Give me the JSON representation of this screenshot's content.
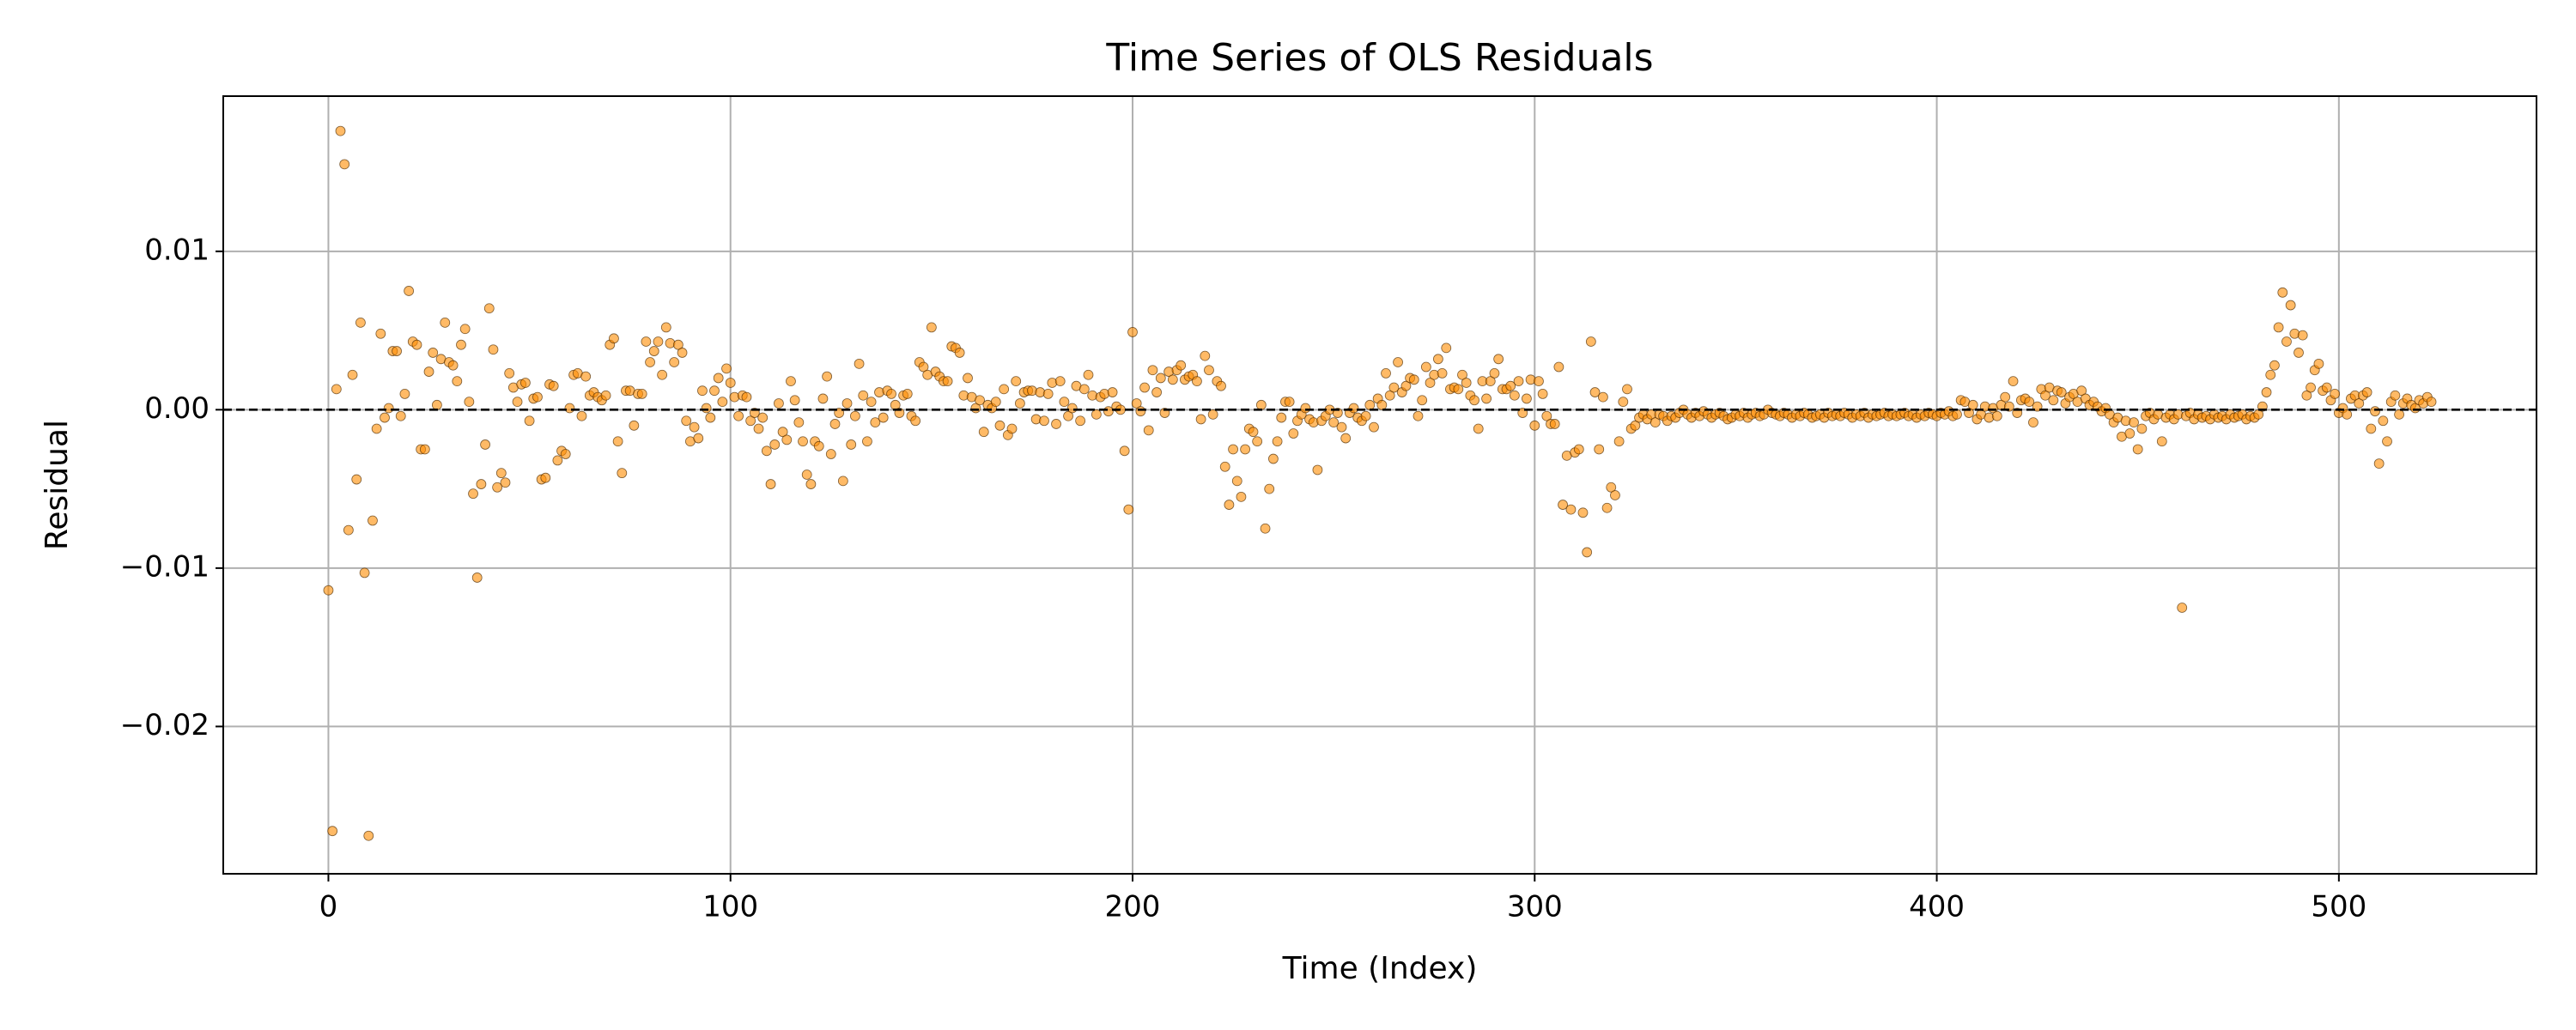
{
  "chart_data": {
    "type": "scatter",
    "title": "Time Series of OLS Residuals",
    "x_label": "Time (Index)",
    "y_label": "Residual",
    "color": "#ff8c00",
    "grid": true,
    "reference_line": {
      "y": 0,
      "color": "#000000",
      "dashed": true
    },
    "xlim": [
      -26.15,
      549.15
    ],
    "ylim": [
      -0.0293,
      0.0198
    ],
    "xticks": [
      0,
      100,
      200,
      300,
      400,
      500
    ],
    "yticks": [
      {
        "value": -0.02,
        "label": "−0.02"
      },
      {
        "value": -0.01,
        "label": "−0.01"
      },
      {
        "value": 0,
        "label": "0.00"
      },
      0.01
    ],
    "x": [
      0,
      1,
      2,
      3,
      4,
      5,
      6,
      7,
      8,
      9,
      10,
      11,
      12,
      13,
      14,
      15,
      16,
      17,
      18,
      19,
      20,
      21,
      22,
      23,
      24,
      25,
      26,
      27,
      28,
      29,
      30,
      31,
      32,
      33,
      34,
      35,
      36,
      37,
      38,
      39,
      40,
      41,
      42,
      43,
      44,
      45,
      46,
      47,
      48,
      49,
      50,
      51,
      52,
      53,
      54,
      55,
      56,
      57,
      58,
      59,
      60,
      61,
      62,
      63,
      64,
      65,
      66,
      67,
      68,
      69,
      70,
      71,
      72,
      73,
      74,
      75,
      76,
      77,
      78,
      79,
      80,
      81,
      82,
      83,
      84,
      85,
      86,
      87,
      88,
      89,
      90,
      91,
      92,
      93,
      94,
      95,
      96,
      97,
      98,
      99,
      100,
      101,
      102,
      103,
      104,
      105,
      106,
      107,
      108,
      109,
      110,
      111,
      112,
      113,
      114,
      115,
      116,
      117,
      118,
      119,
      120,
      121,
      122,
      123,
      124,
      125,
      126,
      127,
      128,
      129,
      130,
      131,
      132,
      133,
      134,
      135,
      136,
      137,
      138,
      139,
      140,
      141,
      142,
      143,
      144,
      145,
      146,
      147,
      148,
      149,
      150,
      151,
      152,
      153,
      154,
      155,
      156,
      157,
      158,
      159,
      160,
      161,
      162,
      163,
      164,
      165,
      166,
      167,
      168,
      169,
      170,
      171,
      172,
      173,
      174,
      175,
      176,
      177,
      178,
      179,
      180,
      181,
      182,
      183,
      184,
      185,
      186,
      187,
      188,
      189,
      190,
      191,
      192,
      193,
      194,
      195,
      196,
      197,
      198,
      199,
      200,
      201,
      202,
      203,
      204,
      205,
      206,
      207,
      208,
      209,
      210,
      211,
      212,
      213,
      214,
      215,
      216,
      217,
      218,
      219,
      220,
      221,
      222,
      223,
      224,
      225,
      226,
      227,
      228,
      229,
      230,
      231,
      232,
      233,
      234,
      235,
      236,
      237,
      238,
      239,
      240,
      241,
      242,
      243,
      244,
      245,
      246,
      247,
      248,
      249,
      250,
      251,
      252,
      253,
      254,
      255,
      256,
      257,
      258,
      259,
      260,
      261,
      262,
      263,
      264,
      265,
      266,
      267,
      268,
      269,
      270,
      271,
      272,
      273,
      274,
      275,
      276,
      277,
      278,
      279,
      280,
      281,
      282,
      283,
      284,
      285,
      286,
      287,
      288,
      289,
      290,
      291,
      292,
      293,
      294,
      295,
      296,
      297,
      298,
      299,
      300,
      301,
      302,
      303,
      304,
      305,
      306,
      307,
      308,
      309,
      310,
      311,
      312,
      313,
      314,
      315,
      316,
      317,
      318,
      319,
      320,
      321,
      322,
      323,
      324,
      325,
      326,
      327,
      328,
      329,
      330,
      331,
      332,
      333,
      334,
      335,
      336,
      337,
      338,
      339,
      340,
      341,
      342,
      343,
      344,
      345,
      346,
      347,
      348,
      349,
      350,
      351,
      352,
      353,
      354,
      355,
      356,
      357,
      358,
      359,
      360,
      361,
      362,
      363,
      364,
      365,
      366,
      367,
      368,
      369,
      370,
      371,
      372,
      373,
      374,
      375,
      376,
      377,
      378,
      379,
      380,
      381,
      382,
      383,
      384,
      385,
      386,
      387,
      388,
      389,
      390,
      391,
      392,
      393,
      394,
      395,
      396,
      397,
      398,
      399,
      400,
      401,
      402,
      403,
      404,
      405,
      406,
      407,
      408,
      409,
      410,
      411,
      412,
      413,
      414,
      415,
      416,
      417,
      418,
      419,
      420,
      421,
      422,
      423,
      424,
      425,
      426,
      427,
      428,
      429,
      430,
      431,
      432,
      433,
      434,
      435,
      436,
      437,
      438,
      439,
      440,
      441,
      442,
      443,
      444,
      445,
      446,
      447,
      448,
      449,
      450,
      451,
      452,
      453,
      454,
      455,
      456,
      457,
      458,
      459,
      460,
      461,
      462,
      463,
      464,
      465,
      466,
      467,
      468,
      469,
      470,
      471,
      472,
      473,
      474,
      475,
      476,
      477,
      478,
      479,
      480,
      481,
      482,
      483,
      484,
      485,
      486,
      487,
      488,
      489,
      490,
      491,
      492,
      493,
      494,
      495,
      496,
      497,
      498,
      499,
      500,
      501,
      502,
      503,
      504,
      505,
      506,
      507,
      508,
      509,
      510,
      511,
      512,
      513,
      514,
      515,
      516,
      517,
      518,
      519,
      520,
      521,
      522,
      523
    ],
    "values": [
      -0.0114,
      -0.0266,
      0.0013,
      0.0176,
      0.0155,
      -0.0076,
      0.0022,
      -0.0044,
      0.0055,
      -0.0103,
      -0.0269,
      -0.007,
      -0.0012,
      0.0048,
      -0.0005,
      0.0001,
      0.0037,
      0.0037,
      -0.0004,
      0.001,
      0.0075,
      0.0043,
      0.0041,
      -0.0025,
      -0.0025,
      0.0024,
      0.0036,
      0.0003,
      0.0032,
      0.0055,
      0.003,
      0.0028,
      0.0018,
      0.0041,
      0.0051,
      0.0005,
      -0.0053,
      -0.0106,
      -0.0047,
      -0.0022,
      0.0064,
      0.0038,
      -0.0049,
      -0.004,
      -0.0046,
      0.0023,
      0.0014,
      0.0005,
      0.0016,
      0.0017,
      -0.0007,
      0.0007,
      0.0008,
      -0.0044,
      -0.0043,
      0.0016,
      0.0015,
      -0.0032,
      -0.0026,
      -0.0028,
      0.0001,
      0.0022,
      0.0023,
      -0.0004,
      0.0021,
      0.0009,
      0.0011,
      0.0008,
      0.0006,
      0.0009,
      0.0041,
      0.0045,
      -0.002,
      -0.004,
      0.0012,
      0.0012,
      -0.001,
      0.001,
      0.001,
      0.0043,
      0.003,
      0.0037,
      0.0043,
      0.0022,
      0.0052,
      0.0042,
      0.003,
      0.0041,
      0.0036,
      -0.0007,
      -0.002,
      -0.0011,
      -0.0018,
      0.0012,
      0.0001,
      -0.0005,
      0.0012,
      0.002,
      0.0005,
      0.0026,
      0.0017,
      0.0008,
      -0.0004,
      0.0009,
      0.0008,
      -0.0007,
      -0.0002,
      -0.0012,
      -0.0005,
      -0.0026,
      -0.0047,
      -0.0022,
      0.0004,
      -0.0014,
      -0.0019,
      0.0018,
      0.0006,
      -0.0008,
      -0.002,
      -0.0041,
      -0.0047,
      -0.002,
      -0.0023,
      0.0007,
      0.0021,
      -0.0028,
      -0.0009,
      -0.0002,
      -0.0045,
      0.0004,
      -0.0022,
      -0.0004,
      0.0029,
      0.0009,
      -0.002,
      0.0005,
      -0.0008,
      0.0011,
      -0.0005,
      0.0012,
      0.001,
      0.0003,
      -0.0002,
      0.0009,
      0.001,
      -0.0004,
      -0.0007,
      0.003,
      0.0027,
      0.0022,
      0.0052,
      0.0024,
      0.0021,
      0.0018,
      0.0018,
      0.004,
      0.0039,
      0.0036,
      0.0009,
      0.002,
      0.0008,
      0.0001,
      0.0006,
      -0.0014,
      0.0003,
      0.0001,
      0.0005,
      -0.001,
      0.0013,
      -0.0016,
      -0.0012,
      0.0018,
      0.0004,
      0.0011,
      0.0012,
      0.0012,
      -0.0006,
      0.0011,
      -0.0007,
      0.001,
      0.0017,
      -0.0009,
      0.0018,
      0.0005,
      -0.0004,
      0.0001,
      0.0015,
      -0.0007,
      0.0013,
      0.0022,
      0.0009,
      -0.0003,
      0.0008,
      0.001,
      -0.0001,
      0.0011,
      0.0002,
      0.0,
      -0.0026,
      -0.0063,
      0.0049,
      0.0004,
      -0.0001,
      0.0014,
      -0.0013,
      0.0025,
      0.0011,
      0.002,
      -0.0002,
      0.0024,
      0.0019,
      0.0025,
      0.0028,
      0.0019,
      0.0021,
      0.0022,
      0.0018,
      -0.0006,
      0.0034,
      0.0025,
      -0.0003,
      0.0018,
      0.0015,
      -0.0036,
      -0.006,
      -0.0025,
      -0.0045,
      -0.0055,
      -0.0025,
      -0.0012,
      -0.0014,
      -0.002,
      0.0003,
      -0.0075,
      -0.005,
      -0.0031,
      -0.002,
      -0.0005,
      0.0005,
      0.0005,
      -0.0015,
      -0.0007,
      -0.0003,
      0.0001,
      -0.0006,
      -0.0008,
      -0.0038,
      -0.0007,
      -0.0004,
      0.0,
      -0.0008,
      -0.0002,
      -0.0011,
      -0.0018,
      -0.0002,
      0.0001,
      -0.0005,
      -0.0007,
      -0.0004,
      0.0003,
      -0.0011,
      0.0007,
      0.0003,
      0.0023,
      0.0009,
      0.0014,
      0.003,
      0.0011,
      0.0015,
      0.002,
      0.0019,
      -0.0004,
      0.0006,
      0.0027,
      0.0017,
      0.0022,
      0.0032,
      0.0023,
      0.0039,
      0.0013,
      0.0014,
      0.0013,
      0.0022,
      0.0017,
      0.0009,
      0.0006,
      -0.0012,
      0.0018,
      0.0007,
      0.0018,
      0.0023,
      0.0032,
      0.0013,
      0.0013,
      0.0015,
      0.0009,
      0.0018,
      -0.0002,
      0.0007,
      0.0019,
      -0.001,
      0.0018,
      0.001,
      -0.0004,
      -0.0009,
      -0.0009,
      0.0027,
      -0.006,
      -0.0029,
      -0.0063,
      -0.0027,
      -0.0025,
      -0.0065,
      -0.009,
      0.0043,
      0.0011,
      -0.0025,
      0.0008,
      -0.0062,
      -0.0049,
      -0.0054,
      -0.002,
      0.0005,
      0.0013,
      -0.0012,
      -0.001,
      -0.0005,
      -0.0003,
      -0.0006,
      -0.0003,
      -0.0008,
      -0.0003,
      -0.0004,
      -0.0007,
      -0.0004,
      -0.0005,
      -0.0002,
      0.0,
      -0.0003,
      -0.0005,
      -0.0002,
      -0.0004,
      -0.0001,
      -0.0003,
      -0.0005,
      -0.0003,
      -0.0002,
      -0.0004,
      -0.0006,
      -0.0005,
      -0.0003,
      -0.0004,
      -0.0002,
      -0.0005,
      -0.0003,
      -0.0002,
      -0.0004,
      -0.0003,
      0.0,
      -0.0002,
      -0.0003,
      -0.0004,
      -0.0002,
      -0.0003,
      -0.0005,
      -0.0003,
      -0.0004,
      -0.0002,
      -0.0003,
      -0.0005,
      -0.0004,
      -0.0003,
      -0.0005,
      -0.0002,
      -0.0004,
      -0.0003,
      -0.0004,
      -0.0002,
      -0.0003,
      -0.0005,
      -0.0003,
      -0.0004,
      -0.0002,
      -0.0005,
      -0.0003,
      -0.0004,
      -0.0003,
      -0.0002,
      -0.0004,
      -0.0003,
      -0.0004,
      -0.0003,
      -0.0002,
      -0.0004,
      -0.0003,
      -0.0005,
      -0.0003,
      -0.0004,
      -0.0002,
      -0.0003,
      -0.0004,
      -0.0002,
      -0.0003,
      -0.0001,
      -0.0004,
      -0.0003,
      0.0006,
      0.0005,
      -0.0002,
      0.0003,
      -0.0006,
      -0.0003,
      0.0002,
      -0.0005,
      0.0001,
      -0.0004,
      0.0003,
      0.0008,
      0.0002,
      0.0018,
      -0.0002,
      0.0006,
      0.0007,
      0.0005,
      -0.0008,
      0.0002,
      0.0013,
      0.0009,
      0.0014,
      0.0006,
      0.0012,
      0.0011,
      0.0004,
      0.0008,
      0.001,
      0.0005,
      0.0012,
      0.0007,
      0.0003,
      0.0005,
      0.0002,
      -0.0001,
      0.0001,
      -0.0003,
      -0.0008,
      -0.0005,
      -0.0017,
      -0.0007,
      -0.0015,
      -0.0008,
      -0.0025,
      -0.0012,
      -0.0004,
      -0.0002,
      -0.0006,
      -0.0003,
      -0.002,
      -0.0005,
      -0.0003,
      -0.0006,
      -0.0003,
      -0.0125,
      -0.0004,
      -0.0002,
      -0.0006,
      -0.0003,
      -0.0005,
      -0.0004,
      -0.0006,
      -0.0003,
      -0.0005,
      -0.0004,
      -0.0006,
      -0.0003,
      -0.0005,
      -0.0004,
      -0.0003,
      -0.0006,
      -0.0004,
      -0.0005,
      -0.0003,
      0.0002,
      0.0011,
      0.0022,
      0.0028,
      0.0052,
      0.0074,
      0.0043,
      0.0066,
      0.0048,
      0.0036,
      0.0047,
      0.0009,
      0.0014,
      0.0025,
      0.0029,
      0.0012,
      0.0014,
      0.0006,
      0.001,
      -0.0002,
      0.0001,
      -0.0003,
      0.0007,
      0.0009,
      0.0004,
      0.0009,
      0.0011,
      -0.0012,
      -0.0001,
      -0.0034,
      -0.0007,
      -0.002,
      0.0005,
      0.0009,
      -0.0003,
      0.0004,
      0.0007,
      0.0003,
      0.0001,
      0.0006,
      0.0004,
      0.0008,
      0.0005
    ]
  }
}
